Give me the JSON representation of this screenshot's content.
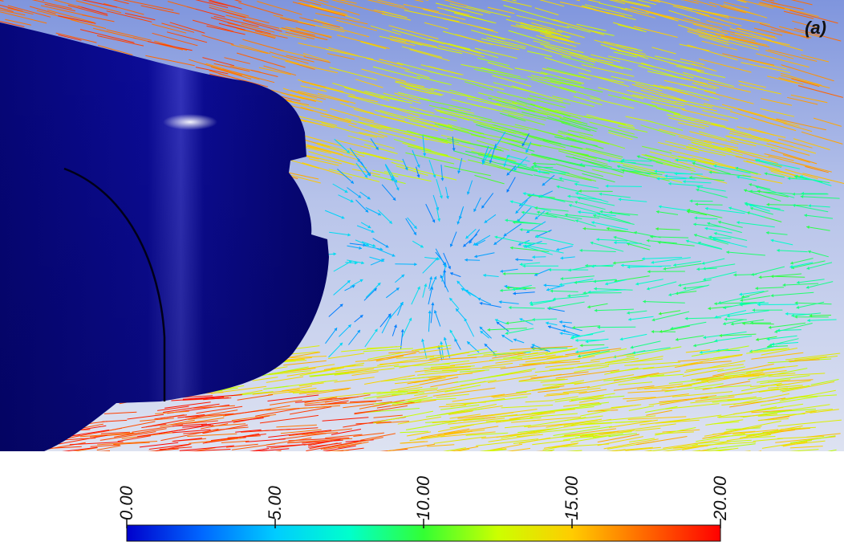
{
  "panel_label": "(a)",
  "colorbar": {
    "min": 0,
    "max": 20,
    "ticks": [
      {
        "value": 0,
        "label": "0.00"
      },
      {
        "value": 5,
        "label": "5.00"
      },
      {
        "value": 10,
        "label": "10.00"
      },
      {
        "value": 15,
        "label": "15.00"
      },
      {
        "value": 20,
        "label": "20.00"
      }
    ],
    "colormap": [
      "#0000cc",
      "#0066ff",
      "#00ccff",
      "#00ffcc",
      "#33ff33",
      "#ccff00",
      "#ffcc00",
      "#ff6600",
      "#ff0000"
    ]
  },
  "colors": {
    "body": "#0a0a8c",
    "background_top": "#8a9ee0",
    "background_bottom": "#d9dff0"
  }
}
